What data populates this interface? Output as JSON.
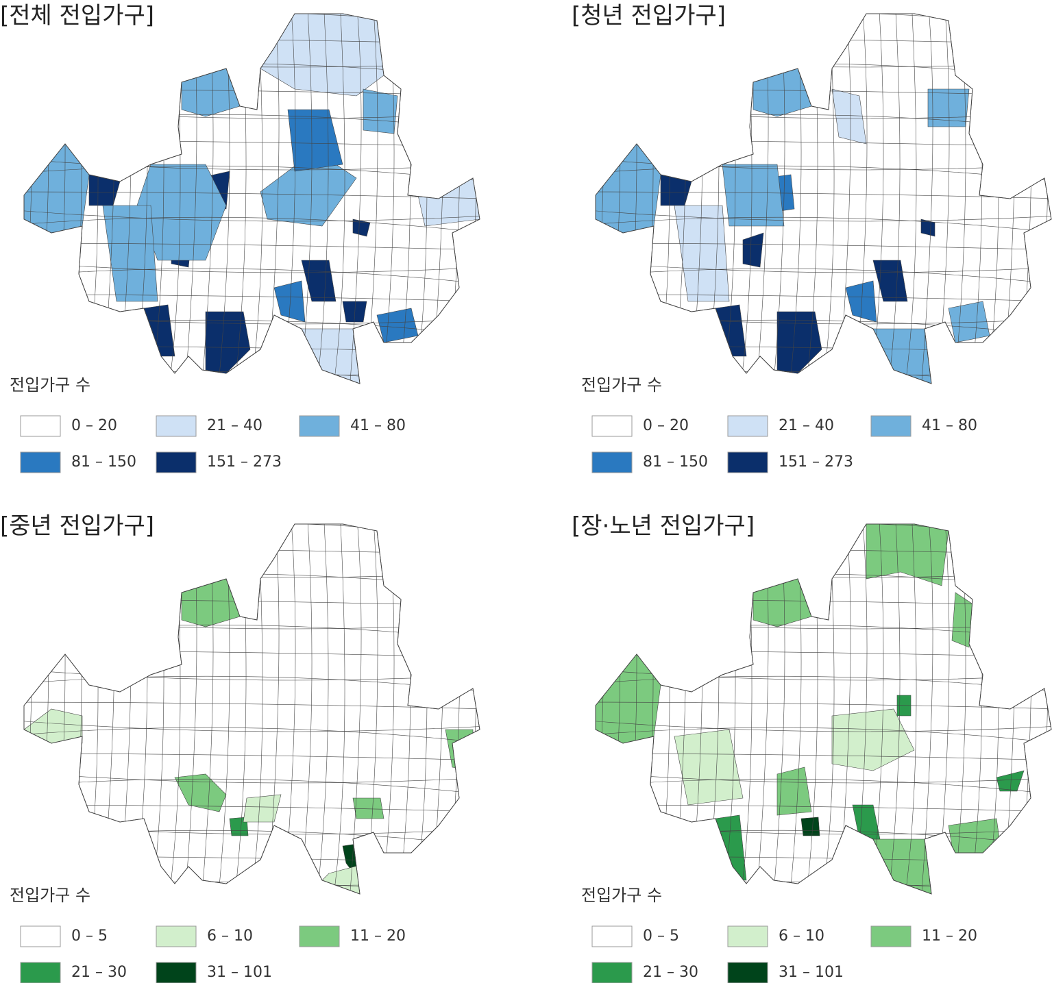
{
  "panels": [
    {
      "title": "[전체 전입가구]",
      "legend_title": "전입가구 수",
      "legend": [
        {
          "label": "0 – 20",
          "color": "#ffffff"
        },
        {
          "label": "21 – 40",
          "color": "#cfe1f5"
        },
        {
          "label": "41 – 80",
          "color": "#6fb0dc"
        },
        {
          "label": "81 – 150",
          "color": "#2a79c0"
        },
        {
          "label": "151 – 273",
          "color": "#0b2f6b"
        }
      ]
    },
    {
      "title": "[청년 전입가구]",
      "legend_title": "전입가구 수",
      "legend": [
        {
          "label": "0 – 20",
          "color": "#ffffff"
        },
        {
          "label": "21 – 40",
          "color": "#cfe1f5"
        },
        {
          "label": "41 – 80",
          "color": "#6fb0dc"
        },
        {
          "label": "81 – 150",
          "color": "#2a79c0"
        },
        {
          "label": "151 – 273",
          "color": "#0b2f6b"
        }
      ]
    },
    {
      "title": "[중년 전입가구]",
      "legend_title": "전입가구 수",
      "legend": [
        {
          "label": "0 – 5",
          "color": "#ffffff"
        },
        {
          "label": "6 – 10",
          "color": "#d2efcc"
        },
        {
          "label": "11 – 20",
          "color": "#7cca7f"
        },
        {
          "label": "21 – 30",
          "color": "#2b9a4c"
        },
        {
          "label": "31 – 101",
          "color": "#00441b"
        }
      ]
    },
    {
      "title": "[장·노년 전입가구]",
      "legend_title": "전입가구 수",
      "legend": [
        {
          "label": "0 – 5",
          "color": "#ffffff"
        },
        {
          "label": "6 – 10",
          "color": "#d2efcc"
        },
        {
          "label": "11 – 20",
          "color": "#7cca7f"
        },
        {
          "label": "21 – 30",
          "color": "#2b9a4c"
        },
        {
          "label": "31 – 101",
          "color": "#00441b"
        }
      ]
    }
  ]
}
